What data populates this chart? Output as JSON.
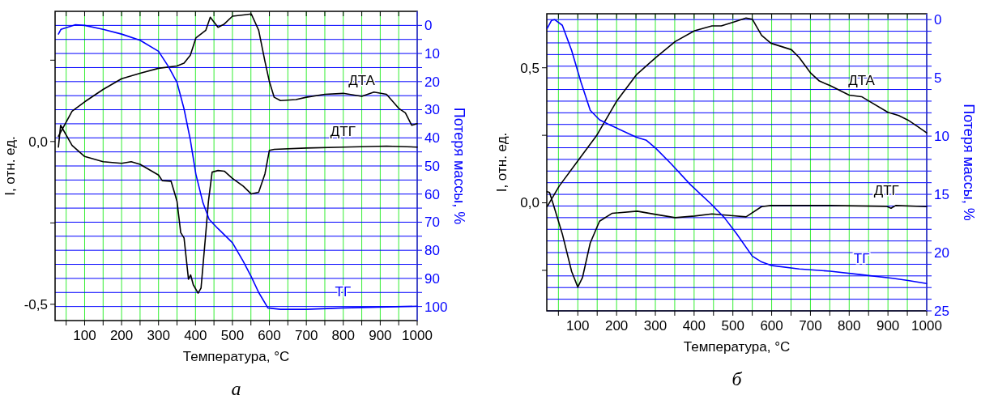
{
  "chart_data": [
    {
      "type": "line",
      "xlabel": "Температура, °C",
      "ylabel": "I, отн. ед.",
      "y2label": "Потеря массы, %",
      "annotations": [
        "а"
      ],
      "grid": true,
      "xlim": [
        20,
        1000
      ],
      "xticks": [
        {
          "value": 50,
          "label": null
        },
        100,
        {
          "value": 150,
          "label": null
        },
        200,
        {
          "value": 250,
          "label": null
        },
        300,
        {
          "value": 350,
          "label": null
        },
        400,
        {
          "value": 450,
          "label": null
        },
        500,
        {
          "value": 550,
          "label": null
        },
        600,
        {
          "value": 650,
          "label": null
        },
        700,
        {
          "value": 750,
          "label": null
        },
        800,
        {
          "value": 850,
          "label": null
        },
        900,
        {
          "value": 950,
          "label": null
        },
        1000
      ],
      "ylim": [
        -0.55,
        0.4
      ],
      "yticks": [
        {
          "value": -0.5,
          "label": "-0,5"
        },
        {
          "value": -0.25,
          "label": null
        },
        {
          "value": 0,
          "label": "0,0"
        },
        {
          "value": 0.25,
          "label": null
        }
      ],
      "y2lim": [
        105,
        -5
      ],
      "y2ticks": [
        0,
        {
          "value": 5,
          "label": null
        },
        10,
        {
          "value": 15,
          "label": null
        },
        20,
        {
          "value": 25,
          "label": null
        },
        30,
        {
          "value": 35,
          "label": null
        },
        40,
        {
          "value": 45,
          "label": null
        },
        50,
        {
          "value": 55,
          "label": null
        },
        60,
        {
          "value": 65,
          "label": null
        },
        70,
        {
          "value": 75,
          "label": null
        },
        80,
        {
          "value": 85,
          "label": null
        },
        90,
        {
          "value": 95,
          "label": null
        },
        100
      ],
      "series": [
        {
          "name": "ДТА",
          "color": "#000000",
          "x": [
            29,
            66,
            100,
            150,
            200,
            250,
            300,
            350,
            369,
            386,
            401,
            428,
            440,
            461,
            478,
            500,
            529,
            551,
            571,
            588,
            600,
            613,
            630,
            672,
            700,
            750,
            800,
            850,
            883,
            917,
            950,
            968,
            985,
            1000
          ],
          "values": [
            0.016,
            0.093,
            0.122,
            0.16,
            0.193,
            0.21,
            0.225,
            0.232,
            0.241,
            0.265,
            0.318,
            0.342,
            0.382,
            0.351,
            0.361,
            0.385,
            0.389,
            0.392,
            0.342,
            0.246,
            0.184,
            0.136,
            0.126,
            0.129,
            0.136,
            0.145,
            0.148,
            0.139,
            0.152,
            0.145,
            0.102,
            0.088,
            0.05,
            0.055
          ]
        },
        {
          "name": "ДТГ",
          "color": "#000000",
          "x": [
            29,
            35,
            66,
            100,
            150,
            200,
            226,
            250,
            300,
            310,
            334,
            344,
            350,
            360,
            369,
            381,
            387,
            394,
            407,
            415,
            428,
            435,
            445,
            461,
            478,
            500,
            529,
            551,
            571,
            588,
            600,
            613,
            700,
            799,
            917,
            1000
          ],
          "values": [
            -0.017,
            0.05,
            -0.012,
            -0.046,
            -0.062,
            -0.067,
            -0.062,
            -0.07,
            -0.103,
            -0.12,
            -0.122,
            -0.16,
            -0.184,
            -0.28,
            -0.296,
            -0.423,
            -0.41,
            -0.44,
            -0.466,
            -0.45,
            -0.28,
            -0.184,
            -0.094,
            -0.089,
            -0.091,
            -0.113,
            -0.137,
            -0.161,
            -0.156,
            -0.099,
            -0.027,
            -0.024,
            -0.02,
            -0.017,
            -0.014,
            -0.017
          ]
        },
        {
          "name": "ТГ",
          "color": "#0000ff",
          "axis": "y2",
          "x": [
            29,
            36,
            74,
            100,
            150,
            200,
            250,
            300,
            327,
            350,
            369,
            386,
            401,
            420,
            437,
            461,
            500,
            529,
            551,
            571,
            596,
            630,
            700,
            799,
            1000
          ],
          "values": [
            3.1,
            1.4,
            -0.2,
            0,
            1.4,
            3.1,
            5.3,
            9.2,
            14.7,
            20.3,
            29.7,
            40.7,
            52.9,
            63,
            69,
            72.3,
            77.3,
            83.9,
            89.4,
            95,
            100.5,
            101,
            101,
            100.5,
            99.9
          ]
        }
      ]
    },
    {
      "type": "line",
      "xlabel": "Температура, °C",
      "ylabel": "I, отн. ед.",
      "y2label": "Потеря массы, %",
      "annotations": [
        "б"
      ],
      "grid": true,
      "xlim": [
        20,
        1000
      ],
      "xticks": [
        {
          "value": 50,
          "label": null
        },
        100,
        {
          "value": 150,
          "label": null
        },
        200,
        {
          "value": 250,
          "label": null
        },
        300,
        {
          "value": 350,
          "label": null
        },
        400,
        {
          "value": 450,
          "label": null
        },
        500,
        {
          "value": 550,
          "label": null
        },
        600,
        {
          "value": 650,
          "label": null
        },
        700,
        {
          "value": 750,
          "label": null
        },
        800,
        {
          "value": 850,
          "label": null
        },
        900,
        {
          "value": 950,
          "label": null
        },
        1000
      ],
      "ylim": [
        -0.4,
        0.7
      ],
      "yticks": [
        {
          "value": -0.25,
          "label": null
        },
        {
          "value": 0,
          "label": "0,0"
        },
        {
          "value": 0.25,
          "label": null
        },
        {
          "value": 0.5,
          "label": "0,5"
        }
      ],
      "y2lim": [
        25,
        -0.5
      ],
      "y2ticks": [
        0,
        {
          "value": 1,
          "label": null
        },
        {
          "value": 2,
          "label": null
        },
        {
          "value": 3,
          "label": null
        },
        {
          "value": 4,
          "label": null
        },
        5,
        {
          "value": 6,
          "label": null
        },
        {
          "value": 7,
          "label": null
        },
        {
          "value": 8,
          "label": null
        },
        {
          "value": 9,
          "label": null
        },
        10,
        {
          "value": 11,
          "label": null
        },
        {
          "value": 12,
          "label": null
        },
        {
          "value": 13,
          "label": null
        },
        {
          "value": 14,
          "label": null
        },
        15,
        {
          "value": 16,
          "label": null
        },
        {
          "value": 17,
          "label": null
        },
        {
          "value": 18,
          "label": null
        },
        {
          "value": 19,
          "label": null
        },
        20,
        {
          "value": 21,
          "label": null
        },
        {
          "value": 22,
          "label": null
        },
        {
          "value": 23,
          "label": null
        },
        {
          "value": 24,
          "label": null
        },
        25
      ],
      "series": [
        {
          "name": "ДТА",
          "color": "#000000",
          "x": [
            21,
            52,
            100,
            148,
            200,
            251,
            301,
            351,
            401,
            446,
            470,
            502,
            534,
            550,
            574,
            598,
            651,
            671,
            701,
            723,
            751,
            800,
            832,
            852,
            900,
            928,
            952,
            976,
            1000
          ],
          "values": [
            -0.014,
            0.062,
            0.155,
            0.248,
            0.376,
            0.474,
            0.538,
            0.597,
            0.637,
            0.655,
            0.655,
            0.669,
            0.684,
            0.68,
            0.62,
            0.591,
            0.567,
            0.538,
            0.48,
            0.451,
            0.434,
            0.399,
            0.393,
            0.376,
            0.335,
            0.323,
            0.306,
            0.283,
            0.259
          ]
        },
        {
          "name": "ДТГ",
          "color": "#000000",
          "x": [
            21,
            27,
            36,
            60,
            84,
            100,
            112,
            132,
            156,
            188,
            253,
            301,
            351,
            401,
            446,
            494,
            534,
            574,
            598,
            671,
            751,
            896,
            908,
            920,
            1000
          ],
          "values": [
            0.041,
            0.038,
            -0.002,
            -0.115,
            -0.254,
            -0.312,
            -0.277,
            -0.149,
            -0.068,
            -0.039,
            -0.031,
            -0.043,
            -0.055,
            -0.049,
            -0.041,
            -0.047,
            -0.052,
            -0.014,
            -0.01,
            -0.01,
            -0.01,
            -0.013,
            -0.02,
            -0.01,
            -0.014
          ]
        },
        {
          "name": "ТГ",
          "color": "#0000ff",
          "axis": "y2",
          "x": [
            21,
            32,
            40,
            60,
            84,
            108,
            132,
            156,
            180,
            251,
            277,
            301,
            341,
            390,
            446,
            478,
            510,
            550,
            574,
            598,
            671,
            751,
            832,
            912,
            952,
            1000
          ],
          "values": [
            0.76,
            0.08,
            0,
            0.49,
            2.65,
            5.36,
            7.79,
            8.6,
            9.0,
            10.09,
            10.36,
            11.04,
            12.39,
            14.15,
            15.9,
            17.0,
            18.4,
            20.3,
            20.8,
            21.1,
            21.4,
            21.6,
            21.9,
            22.2,
            22.4,
            22.65
          ]
        }
      ]
    }
  ]
}
